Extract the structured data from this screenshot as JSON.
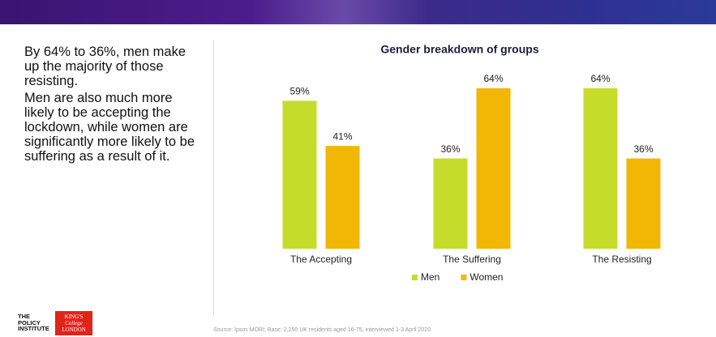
{
  "text": {
    "paragraphs": [
      "By 64% to 36%, men make up the majority of those resisting.",
      "Men are also much more likely to be accepting the lockdown, while women are significantly more likely to be suffering as a result of it."
    ]
  },
  "source": "Source: Ipsos MORI; Base: 2,250 UK residents aged 16-75, interviewed 1-3 April 2020",
  "logo": {
    "institute": [
      "THE",
      "POLICY",
      "INSTITUTE"
    ],
    "college": [
      "KING'S",
      "College",
      "LONDON"
    ]
  },
  "chart_data": {
    "type": "bar",
    "title": "Gender breakdown of groups",
    "categories": [
      "The Accepting",
      "The Suffering",
      "The Resisting"
    ],
    "series": [
      {
        "name": "Men",
        "color": "#c6dc2b",
        "values": [
          59,
          36,
          64
        ],
        "value_labels": [
          "59%",
          "36%",
          "64%"
        ]
      },
      {
        "name": "Women",
        "color": "#f2b705",
        "values": [
          41,
          64,
          36
        ],
        "value_labels": [
          "41%",
          "64%",
          "36%"
        ]
      }
    ],
    "ylim": [
      0,
      70
    ]
  }
}
